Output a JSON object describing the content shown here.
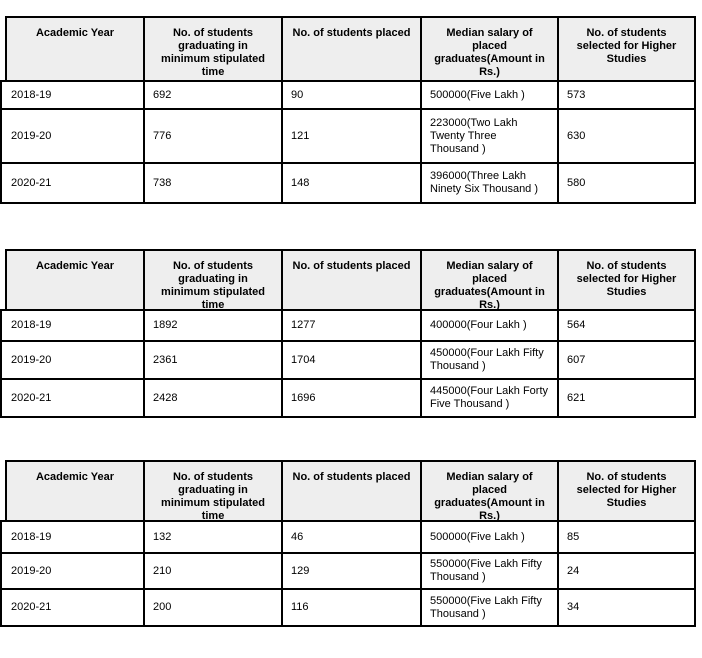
{
  "colors": {
    "page_bg": "#ffffff",
    "header_bg": "#eeeeee",
    "border": "#000000",
    "text": "#000000"
  },
  "columns": [
    "Academic Year",
    "No. of students graduating in minimum stipulated time",
    "No. of students placed",
    "Median salary of placed graduates(Amount in Rs.)",
    "No. of students selected for Higher Studies"
  ],
  "tables": [
    {
      "id": "placement-table-1",
      "rows": [
        [
          "2018-19",
          "692",
          "90",
          "500000(Five Lakh )",
          "573"
        ],
        [
          "2019-20",
          "776",
          "121",
          "223000(Two Lakh Twenty Three Thousand )",
          "630"
        ],
        [
          "2020-21",
          "738",
          "148",
          "396000(Three Lakh Ninety Six Thousand )",
          "580"
        ]
      ]
    },
    {
      "id": "placement-table-2",
      "rows": [
        [
          "2018-19",
          "1892",
          "1277",
          "400000(Four Lakh )",
          "564"
        ],
        [
          "2019-20",
          "2361",
          "1704",
          "450000(Four Lakh Fifty Thousand )",
          "607"
        ],
        [
          "2020-21",
          "2428",
          "1696",
          "445000(Four Lakh Forty Five Thousand )",
          "621"
        ]
      ]
    },
    {
      "id": "placement-table-3",
      "rows": [
        [
          "2018-19",
          "132",
          "46",
          "500000(Five Lakh )",
          "85"
        ],
        [
          "2019-20",
          "210",
          "129",
          "550000(Five Lakh Fifty Thousand )",
          "24"
        ],
        [
          "2020-21",
          "200",
          "116",
          "550000(Five Lakh Fifty Thousand )",
          "34"
        ]
      ]
    }
  ]
}
